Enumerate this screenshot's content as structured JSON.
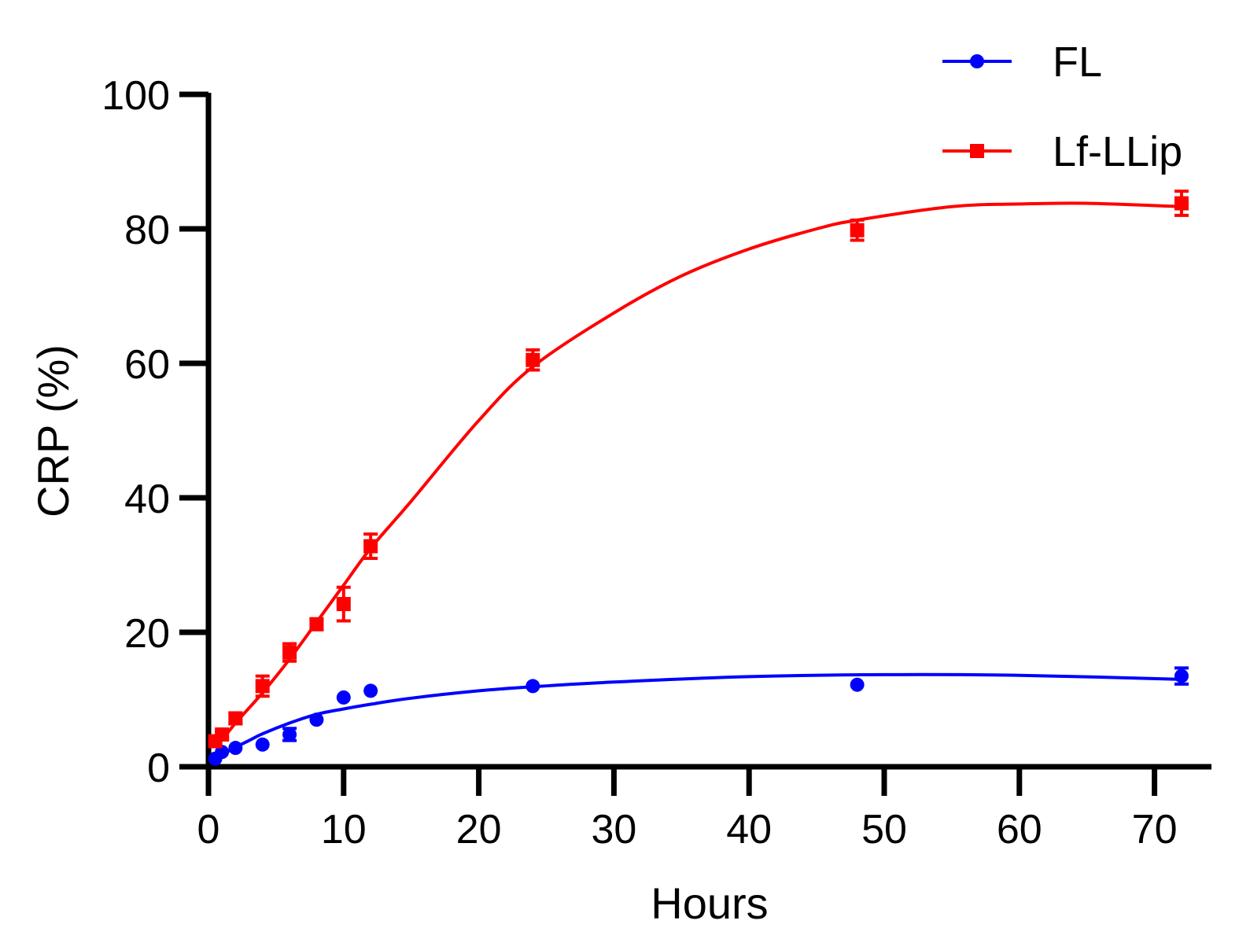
{
  "chart_data": {
    "type": "line",
    "title": "",
    "xlabel": "Hours",
    "ylabel": "CRP (%)",
    "xlim": [
      0,
      74
    ],
    "ylim": [
      0,
      100
    ],
    "xticks": [
      0,
      10,
      20,
      30,
      40,
      50,
      60,
      70
    ],
    "yticks": [
      0,
      20,
      40,
      60,
      80,
      100
    ],
    "xtick_labels": [
      "0",
      "10",
      "20",
      "30",
      "40",
      "50",
      "60",
      "70"
    ],
    "ytick_labels": [
      "0",
      "20",
      "40",
      "60",
      "80",
      "100"
    ],
    "legend_position": "top-right",
    "series": [
      {
        "name": "FL",
        "color": "#0000ff",
        "marker": "circle",
        "x": [
          0.5,
          1,
          2,
          4,
          6,
          8,
          10,
          12,
          24,
          48,
          72
        ],
        "y": [
          1.2,
          2.2,
          2.8,
          3.3,
          4.8,
          7.0,
          10.3,
          11.3,
          12.0,
          12.2,
          13.5
        ],
        "err": [
          0.3,
          0.3,
          0.3,
          0.4,
          0.9,
          0.4,
          0.4,
          0.4,
          0.4,
          0.4,
          1.2
        ],
        "fit_x": [
          0.5,
          1,
          2,
          3,
          4,
          6,
          8,
          10,
          12,
          15,
          20,
          24,
          30,
          40,
          50,
          60,
          72
        ],
        "fit_y": [
          1.3,
          1.8,
          2.9,
          3.9,
          4.9,
          6.5,
          7.8,
          8.6,
          9.3,
          10.2,
          11.3,
          11.9,
          12.6,
          13.4,
          13.7,
          13.6,
          13.0
        ]
      },
      {
        "name": "Lf-LLip",
        "color": "#ff0000",
        "marker": "square",
        "x": [
          0.5,
          1,
          2,
          4,
          6,
          8,
          10,
          12,
          24,
          48,
          72
        ],
        "y": [
          3.8,
          4.8,
          7.2,
          12.0,
          17.0,
          21.2,
          24.2,
          32.8,
          60.5,
          79.8,
          83.8
        ],
        "err": [
          0.5,
          0.5,
          0.8,
          1.5,
          1.3,
          0.8,
          2.5,
          1.8,
          1.5,
          1.5,
          1.8
        ],
        "fit_x": [
          0.5,
          1,
          2,
          4,
          6,
          8,
          10,
          12,
          15,
          20,
          24,
          30,
          35,
          40,
          45,
          48,
          55,
          60,
          65,
          72
        ],
        "fit_y": [
          3.2,
          4.0,
          6.5,
          11.0,
          16.0,
          21.5,
          27.0,
          32.5,
          39.5,
          51.5,
          59.5,
          67.5,
          73.0,
          77.0,
          80.0,
          81.3,
          83.3,
          83.7,
          83.8,
          83.3
        ]
      }
    ]
  }
}
